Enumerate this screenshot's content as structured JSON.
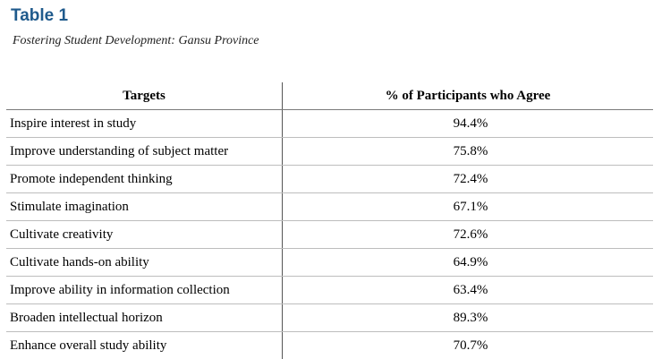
{
  "heading": {
    "label": "Table 1",
    "caption": "Fostering Student Development: Gansu Province"
  },
  "table": {
    "columns": [
      "Targets",
      "% of Participants who Agree"
    ],
    "rows": [
      {
        "target": "Inspire interest in study",
        "percent": "94.4%"
      },
      {
        "target": "Improve understanding of subject matter",
        "percent": "75.8%"
      },
      {
        "target": "Promote independent thinking",
        "percent": "72.4%"
      },
      {
        "target": "Stimulate imagination",
        "percent": "67.1%"
      },
      {
        "target": "Cultivate creativity",
        "percent": "72.6%"
      },
      {
        "target": "Cultivate hands-on ability",
        "percent": "64.9%"
      },
      {
        "target": "Improve ability in information collection",
        "percent": "63.4%"
      },
      {
        "target": "Broaden intellectual horizon",
        "percent": "89.3%"
      },
      {
        "target": "Enhance overall study ability",
        "percent": "70.7%"
      }
    ]
  },
  "colors": {
    "heading_blue": "#1f5a8c",
    "rule_gray": "#bdbdbd"
  }
}
